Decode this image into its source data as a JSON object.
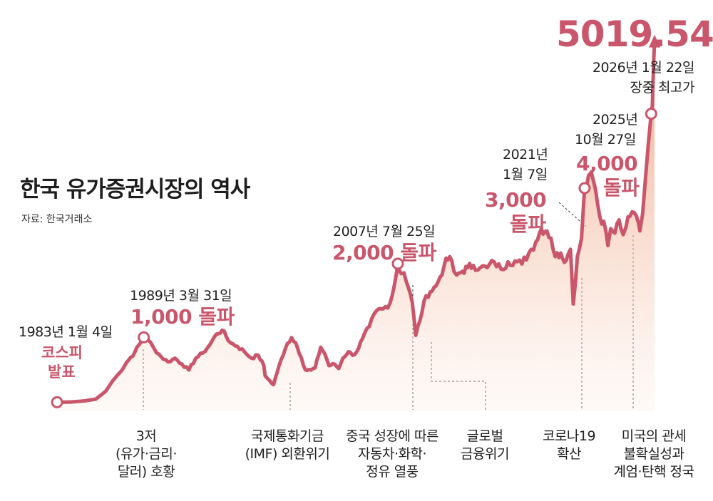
{
  "header": {
    "title": "한국 유가증권시장의 역사",
    "source": "자료: 한국거래소"
  },
  "peak": {
    "value": "5019.54",
    "date": "2026년 1월 22일",
    "label": "장중 최고가"
  },
  "milestones": [
    {
      "date": "1983년 1월 4일",
      "label": "코스피",
      "label2": "발표"
    },
    {
      "date": "1989년 3월 31일",
      "label": "1,000 돌파"
    },
    {
      "date": "2007년 7월 25일",
      "label": "2,000 돌파"
    },
    {
      "date_line1": "2021년",
      "date_line2": "1월 7일",
      "label": "3,000",
      "label2": "돌파"
    },
    {
      "date_line1": "2025년",
      "date_line2": "10월 27일",
      "label": "4,000",
      "label2": "돌파"
    }
  ],
  "events": [
    {
      "lines": [
        "3저",
        "(유가·금리·",
        "달러) 호황"
      ]
    },
    {
      "lines": [
        "국제통화기금",
        "(IMF) 외환위기"
      ]
    },
    {
      "lines": [
        "중국 성장에 따른",
        "자동차·화학·",
        "정유 열풍"
      ]
    },
    {
      "lines": [
        "글로벌",
        "금융위기"
      ]
    },
    {
      "lines": [
        "코로나19",
        "확산"
      ]
    },
    {
      "lines": [
        "미국의 관세",
        "불확실성과",
        "계엄·탄핵 정국"
      ]
    }
  ],
  "colors": {
    "accent": "#c9566b",
    "area_top": "#eea07f",
    "area_bottom": "#fdf0e8",
    "text": "#222222"
  },
  "chart_data": {
    "type": "area",
    "title": "한국 유가증권시장의 역사",
    "xlabel": "",
    "ylabel": "",
    "x_range": [
      1983.0,
      2026.06
    ],
    "ylim": [
      0,
      5200
    ],
    "grid": false,
    "x": [
      1983.0,
      1984.0,
      1985.0,
      1985.8,
      1986.5,
      1987.0,
      1987.5,
      1988.0,
      1988.6,
      1989.25,
      1989.6,
      1990.0,
      1990.5,
      1991.0,
      1991.5,
      1992.0,
      1992.5,
      1993.0,
      1993.5,
      1994.0,
      1994.5,
      1994.9,
      1995.5,
      1996.0,
      1996.5,
      1997.0,
      1997.5,
      1997.9,
      1998.0,
      1998.3,
      1998.6,
      1999.0,
      1999.3,
      1999.6,
      1999.9,
      2000.2,
      2000.6,
      2000.9,
      2001.3,
      2001.6,
      2002.0,
      2002.3,
      2002.6,
      2003.0,
      2003.3,
      2003.6,
      2004.0,
      2004.3,
      2004.6,
      2005.0,
      2005.5,
      2006.0,
      2006.5,
      2007.0,
      2007.3,
      2007.56,
      2007.8,
      2008.0,
      2008.3,
      2008.6,
      2008.85,
      2009.0,
      2009.3,
      2009.6,
      2009.9,
      2010.3,
      2010.6,
      2010.9,
      2011.3,
      2011.6,
      2011.8,
      2012.2,
      2012.6,
      2013.0,
      2013.5,
      2014.0,
      2014.5,
      2015.0,
      2015.5,
      2016.0,
      2016.5,
      2017.0,
      2017.5,
      2017.9,
      2018.3,
      2018.6,
      2018.9,
      2019.3,
      2019.7,
      2020.0,
      2020.2,
      2020.5,
      2020.8,
      2021.02,
      2021.3,
      2021.5,
      2021.8,
      2022.1,
      2022.4,
      2022.7,
      2022.9,
      2023.2,
      2023.5,
      2023.8,
      2024.0,
      2024.3,
      2024.6,
      2024.9,
      2025.0,
      2025.2,
      2025.4,
      2025.6,
      2025.82,
      2025.9,
      2026.0,
      2026.06
    ],
    "values": [
      122,
      125,
      140,
      165,
      270,
      410,
      520,
      660,
      800,
      1003,
      960,
      850,
      740,
      670,
      720,
      640,
      560,
      720,
      790,
      900,
      1050,
      1100,
      930,
      880,
      810,
      720,
      760,
      620,
      480,
      420,
      360,
      620,
      760,
      920,
      1000,
      930,
      730,
      560,
      560,
      590,
      870,
      780,
      620,
      640,
      580,
      720,
      810,
      760,
      810,
      980,
      1150,
      1360,
      1390,
      1470,
      1700,
      2005,
      1870,
      1880,
      1690,
      1480,
      1030,
      1150,
      1340,
      1570,
      1620,
      1700,
      1820,
      1980,
      2100,
      1900,
      1850,
      1900,
      1950,
      1980,
      1950,
      1950,
      2030,
      1930,
      2030,
      2040,
      2000,
      2150,
      2300,
      2480,
      2450,
      2350,
      2100,
      2150,
      2050,
      2200,
      1457,
      2100,
      2350,
      3031,
      3200,
      3250,
      3020,
      2660,
      2580,
      2250,
      2480,
      2420,
      2600,
      2400,
      2500,
      2650,
      2700,
      2560,
      2450,
      2680,
      3150,
      3600,
      4042,
      4150,
      4750,
      5019.54
    ]
  }
}
